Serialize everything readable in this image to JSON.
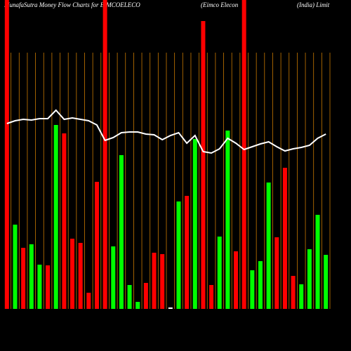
{
  "chart_data": {
    "type": "bar",
    "title": [
      "MunafaSutra  Money  Flow  Charts for EIMCOELECO",
      "(Eimco   Elecon",
      "(India) Limit"
    ],
    "categories": [
      null,
      null,
      null,
      null,
      null,
      null,
      null,
      null,
      null,
      null,
      null,
      null,
      null,
      null,
      null,
      null,
      null,
      null,
      null,
      null,
      null,
      null,
      null,
      null,
      null,
      null,
      null,
      null,
      null,
      null,
      null,
      null,
      null,
      null,
      null,
      null,
      null,
      null,
      null,
      null
    ],
    "ylim": [
      0,
      440
    ],
    "grid_color": "#c87800",
    "bars": {
      "values": [
        440,
        120,
        87,
        92,
        63,
        62,
        262,
        250,
        100,
        94,
        23,
        181,
        440,
        89,
        219,
        34,
        10,
        37,
        80,
        78,
        2,
        153,
        161,
        242,
        410,
        34,
        103,
        254,
        82,
        440,
        55,
        68,
        180,
        102,
        201,
        47,
        35,
        85,
        134,
        77
      ],
      "colors": [
        "#ff0000",
        "#00ff00",
        "#ff0000",
        "#00ff00",
        "#00ff00",
        "#ff0000",
        "#00ff00",
        "#ff0000",
        "#ff0000",
        "#ff0000",
        "#ff0000",
        "#ff0000",
        "#ff0000",
        "#00ff00",
        "#00ff00",
        "#00ff00",
        "#00ff00",
        "#ff0000",
        "#ff0000",
        "#ff0000",
        "#ffffff",
        "#00ff00",
        "#ff0000",
        "#00ff00",
        "#ff0000",
        "#ff0000",
        "#00ff00",
        "#00ff00",
        "#ff0000",
        "#ff0000",
        "#00ff00",
        "#00ff00",
        "#00ff00",
        "#ff0000",
        "#ff0000",
        "#ff0000",
        "#00ff00",
        "#00ff00",
        "#00ff00",
        "#00ff00"
      ]
    },
    "line": {
      "color": "#ffffff",
      "values": [
        264,
        268,
        270,
        269,
        271,
        271,
        283,
        270,
        272,
        270,
        268,
        262,
        240,
        244,
        251,
        252,
        252,
        249,
        248,
        241,
        247,
        251,
        236,
        247,
        224,
        222,
        228,
        243,
        236,
        227,
        231,
        235,
        238,
        231,
        225,
        228,
        230,
        233,
        243,
        249
      ]
    }
  }
}
